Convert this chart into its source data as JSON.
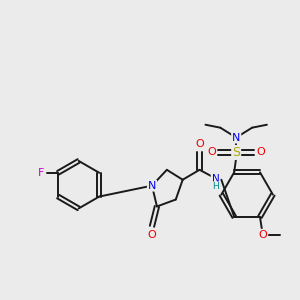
{
  "background_color": "#ebebeb",
  "bond_color": "#1a1a1a",
  "atom_colors": {
    "F": "#cc00cc",
    "N": "#0000ee",
    "O": "#ee0000",
    "S": "#aaaa00",
    "NH": "#008888"
  },
  "figsize": [
    3.0,
    3.0
  ],
  "dpi": 100,
  "lw": 1.4
}
